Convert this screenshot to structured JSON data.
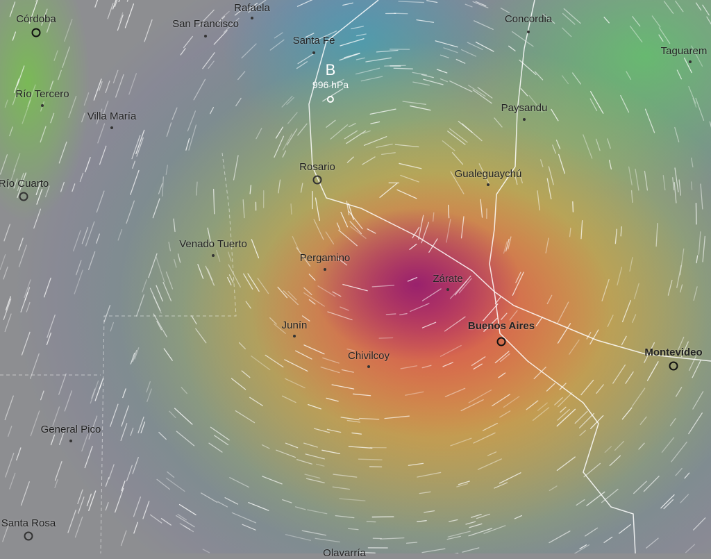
{
  "map": {
    "layer": "precipitation-wind",
    "colors": {
      "background": "#8d8e91",
      "max": "#961e6e",
      "high": "#cd465a",
      "mid": "#e6823c",
      "low": "#e1c846",
      "light": "#6ebe5a",
      "edge": "#5a5abe"
    },
    "pressure_center": {
      "symbol": "B",
      "value": "996 hPa"
    },
    "cities": [
      {
        "name": "Córdoba",
        "major": true
      },
      {
        "name": "Rafaela"
      },
      {
        "name": "San Francisco"
      },
      {
        "name": "Santa Fe"
      },
      {
        "name": "Concordia"
      },
      {
        "name": "Taguarem"
      },
      {
        "name": "Río Tercero"
      },
      {
        "name": "Villa María"
      },
      {
        "name": "Paysandu"
      },
      {
        "name": "Río Cuarto"
      },
      {
        "name": "Rosario"
      },
      {
        "name": "Gualeguaychú"
      },
      {
        "name": "Venado Tuerto"
      },
      {
        "name": "Pergamino"
      },
      {
        "name": "Zárate"
      },
      {
        "name": "Junín"
      },
      {
        "name": "Buenos Aires",
        "major": true
      },
      {
        "name": "Chivilcoy"
      },
      {
        "name": "Montevideo",
        "major": true
      },
      {
        "name": "General Pico"
      },
      {
        "name": "Santa Rosa"
      },
      {
        "name": "Olavarría"
      }
    ]
  }
}
